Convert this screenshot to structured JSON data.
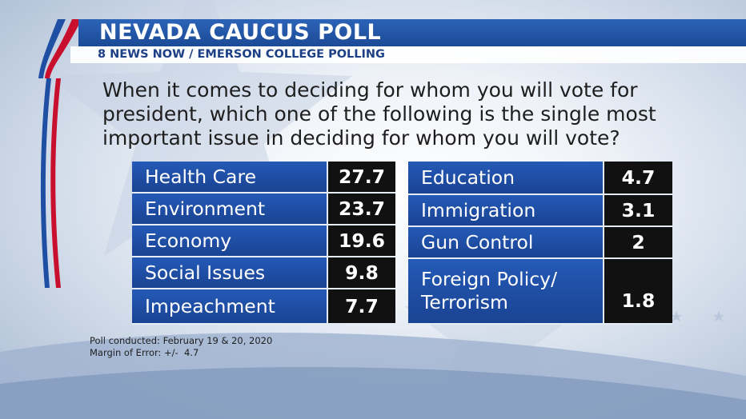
{
  "header": {
    "title": "NEVADA CAUCUS POLL",
    "subtitle": "8 NEWS NOW / EMERSON COLLEGE POLLING"
  },
  "question": "When it comes to deciding for whom you will vote for president, which one of the following is the single most important issue in deciding for whom you will vote?",
  "left_table": [
    {
      "label": "Health Care",
      "value": "27.7"
    },
    {
      "label": "Environment",
      "value": "23.7"
    },
    {
      "label": "Economy",
      "value": "19.6"
    },
    {
      "label": "Social Issues",
      "value": "9.8"
    },
    {
      "label": "Impeachment",
      "value": "7.7"
    }
  ],
  "right_table": [
    {
      "label": "Education",
      "value": "4.7"
    },
    {
      "label": "Immigration",
      "value": "3.1"
    },
    {
      "label": "Gun Control",
      "value": "2"
    },
    {
      "label_line1": "Foreign Policy/",
      "label_line2": "Terrorism",
      "value": "1.8"
    }
  ],
  "footnotes": {
    "conducted": "Poll conducted: February 19 & 20, 2020",
    "margin": "Margin of Error: +/-  4.7"
  },
  "colors": {
    "accent_blue": "#1f4fa3",
    "stripe_red": "#c8102e",
    "value_bg": "#111111"
  }
}
